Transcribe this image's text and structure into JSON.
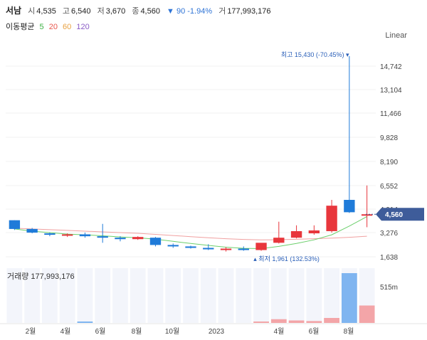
{
  "header": {
    "name": "서남",
    "open_label": "시",
    "open": "4,535",
    "high_label": "고",
    "high": "6,540",
    "low_label": "저",
    "low": "3,670",
    "close_label": "종",
    "close": "4,560",
    "change": "▼ 90 -1.94%",
    "volume_label": "거",
    "volume": "177,993,176"
  },
  "ma": {
    "label": "이동평균",
    "periods": [
      {
        "text": "5",
        "color": "#3cb043"
      },
      {
        "text": "20",
        "color": "#e8564c"
      },
      {
        "text": "60",
        "color": "#e8a040"
      },
      {
        "text": "120",
        "color": "#8a5cc7"
      }
    ]
  },
  "scale_mode": "Linear",
  "chart_data": {
    "type": "candlestick",
    "y_ticks": [
      "14,742",
      "13,104",
      "11,466",
      "9,828",
      "8,190",
      "6,552",
      "4,914",
      "3,276",
      "1,638"
    ],
    "x_ticks": [
      "2월",
      "4월",
      "6월",
      "8월",
      "10월",
      "2023",
      "4월",
      "6월",
      "8월"
    ],
    "current_price": "4,560",
    "high_annotation": "최고 15,430 (-70.45%)",
    "low_annotation": "최저 1,961 (132.53%)",
    "volume_label": "거래량 177,993,176",
    "volume_tick": "515m",
    "up_color": "#e8363c",
    "down_color": "#1f7bd9",
    "candles": [
      {
        "o": 4150,
        "h": 4150,
        "l": 3480,
        "c": 3550
      },
      {
        "o": 3550,
        "h": 3620,
        "l": 3250,
        "c": 3300
      },
      {
        "o": 3250,
        "h": 3300,
        "l": 3050,
        "c": 3150
      },
      {
        "o": 3100,
        "h": 3250,
        "l": 3000,
        "c": 3180
      },
      {
        "o": 3180,
        "h": 3300,
        "l": 2950,
        "c": 3050
      },
      {
        "o": 3050,
        "h": 3900,
        "l": 2600,
        "c": 2950
      },
      {
        "o": 2950,
        "h": 3050,
        "l": 2700,
        "c": 2850
      },
      {
        "o": 2850,
        "h": 3050,
        "l": 2800,
        "c": 3000
      },
      {
        "o": 2950,
        "h": 3000,
        "l": 2350,
        "c": 2450
      },
      {
        "o": 2450,
        "h": 2550,
        "l": 2250,
        "c": 2350
      },
      {
        "o": 2350,
        "h": 2400,
        "l": 2200,
        "c": 2250
      },
      {
        "o": 2250,
        "h": 2500,
        "l": 2100,
        "c": 2150
      },
      {
        "o": 2100,
        "h": 2300,
        "l": 2000,
        "c": 2200
      },
      {
        "o": 2200,
        "h": 2350,
        "l": 2050,
        "c": 2100
      },
      {
        "o": 2100,
        "h": 2550,
        "l": 2050,
        "c": 2600
      },
      {
        "o": 2600,
        "h": 4050,
        "l": 2550,
        "c": 2950
      },
      {
        "o": 2950,
        "h": 3800,
        "l": 2900,
        "c": 3400
      },
      {
        "o": 3250,
        "h": 3800,
        "l": 3150,
        "c": 3450
      },
      {
        "o": 3400,
        "h": 5550,
        "l": 3300,
        "c": 5150
      },
      {
        "o": 5550,
        "h": 15430,
        "l": 4650,
        "c": 4700
      },
      {
        "o": 4535,
        "h": 6540,
        "l": 3670,
        "c": 4560
      }
    ],
    "volume": [
      0,
      0,
      0,
      0,
      10,
      0,
      0,
      0,
      0,
      0,
      0,
      0,
      0,
      0,
      20,
      60,
      40,
      30,
      80,
      800,
      280
    ],
    "ma_green": [
      3550,
      3400,
      3300,
      3200,
      3150,
      3080,
      3000,
      2950,
      2850,
      2700,
      2550,
      2420,
      2300,
      2220,
      2200,
      2350,
      2550,
      2800,
      3150,
      3750,
      4400
    ],
    "ma_red": [
      3600,
      3550,
      3500,
      3450,
      3400,
      3350,
      3300,
      3250,
      3180,
      3100,
      3020,
      2950,
      2880,
      2830,
      2800,
      2810,
      2840,
      2880,
      2920,
      2980,
      3050
    ]
  }
}
